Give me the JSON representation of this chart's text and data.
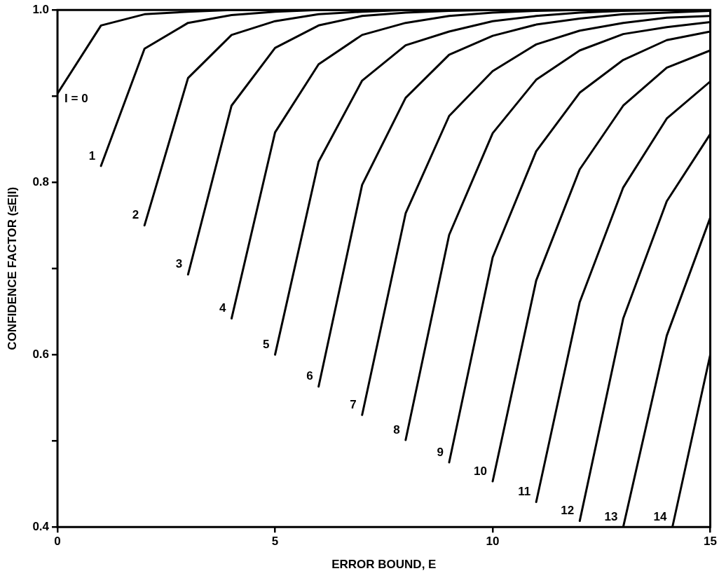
{
  "chart_data": {
    "type": "line",
    "xlabel": "ERROR BOUND, E",
    "ylabel": "CONFIDENCE FACTOR (≤E|I)",
    "xlim": [
      0,
      15
    ],
    "xticks": [
      0,
      5,
      10,
      15
    ],
    "ylim": [
      0.4,
      1.0
    ],
    "yticks": [
      0.4,
      {
        "value": 0.5,
        "label": null
      },
      0.6,
      {
        "value": 0.7,
        "label": null
      },
      0.8,
      {
        "value": 0.9,
        "label": null
      },
      {
        "value": 1.0,
        "label": "1.0"
      }
    ],
    "grid": false,
    "legend": false,
    "marker": "none",
    "line_style": "solid",
    "series": [
      {
        "name": "I = 0",
        "color": "#000000",
        "x": [
          0,
          1,
          2,
          3,
          4,
          5,
          6,
          7,
          8,
          9,
          10,
          11,
          12,
          13,
          14,
          15
        ],
        "values": [
          0.903,
          0.982,
          0.995,
          0.998,
          1.0,
          1.0,
          1.0,
          1.0,
          1.0,
          1.0,
          1.0,
          1.0,
          1.0,
          1.0,
          1.0,
          1.0
        ]
      },
      {
        "name": "1",
        "color": "#000000",
        "x": [
          1,
          2,
          3,
          4,
          5,
          6,
          7,
          8,
          9,
          10,
          11,
          12,
          13,
          14,
          15
        ],
        "values": [
          0.819,
          0.955,
          0.985,
          0.994,
          0.998,
          1.0,
          1.0,
          1.0,
          1.0,
          1.0,
          1.0,
          1.0,
          1.0,
          1.0,
          1.0
        ]
      },
      {
        "name": "2",
        "color": "#000000",
        "x": [
          2,
          3,
          4,
          5,
          6,
          7,
          8,
          9,
          10,
          11,
          12,
          13,
          14,
          15
        ],
        "values": [
          0.75,
          0.921,
          0.971,
          0.987,
          0.995,
          0.998,
          1.0,
          1.0,
          1.0,
          1.0,
          1.0,
          1.0,
          1.0,
          1.0
        ]
      },
      {
        "name": "3",
        "color": "#000000",
        "x": [
          3,
          4,
          5,
          6,
          7,
          8,
          9,
          10,
          11,
          12,
          13,
          14,
          15
        ],
        "values": [
          0.693,
          0.889,
          0.956,
          0.982,
          0.993,
          0.997,
          0.999,
          1.0,
          1.0,
          1.0,
          1.0,
          1.0,
          1.0
        ]
      },
      {
        "name": "4",
        "color": "#000000",
        "x": [
          4,
          5,
          6,
          7,
          8,
          9,
          10,
          11,
          12,
          13,
          14,
          15
        ],
        "values": [
          0.642,
          0.858,
          0.937,
          0.971,
          0.985,
          0.993,
          0.997,
          0.999,
          1.0,
          1.0,
          1.0,
          1.0
        ]
      },
      {
        "name": "5",
        "color": "#000000",
        "x": [
          5,
          6,
          7,
          8,
          9,
          10,
          11,
          12,
          13,
          14,
          15
        ],
        "values": [
          0.6,
          0.824,
          0.918,
          0.959,
          0.975,
          0.987,
          0.993,
          0.997,
          0.999,
          1.0,
          1.0
        ]
      },
      {
        "name": "6",
        "color": "#000000",
        "x": [
          6,
          7,
          8,
          9,
          10,
          11,
          12,
          13,
          14,
          15
        ],
        "values": [
          0.563,
          0.797,
          0.898,
          0.948,
          0.97,
          0.983,
          0.99,
          0.995,
          0.997,
          0.999
        ]
      },
      {
        "name": "7",
        "color": "#000000",
        "x": [
          7,
          8,
          9,
          10,
          11,
          12,
          13,
          14,
          15
        ],
        "values": [
          0.53,
          0.764,
          0.877,
          0.929,
          0.96,
          0.976,
          0.985,
          0.991,
          0.993
        ]
      },
      {
        "name": "8",
        "color": "#000000",
        "x": [
          8,
          9,
          10,
          11,
          12,
          13,
          14,
          15
        ],
        "values": [
          0.501,
          0.739,
          0.857,
          0.919,
          0.953,
          0.972,
          0.98,
          0.986
        ]
      },
      {
        "name": "9",
        "color": "#000000",
        "x": [
          9,
          10,
          11,
          12,
          13,
          14,
          15
        ],
        "values": [
          0.475,
          0.713,
          0.836,
          0.904,
          0.942,
          0.965,
          0.975
        ]
      },
      {
        "name": "10",
        "color": "#000000",
        "x": [
          10,
          11,
          12,
          13,
          14,
          15
        ],
        "values": [
          0.453,
          0.686,
          0.815,
          0.889,
          0.933,
          0.953
        ]
      },
      {
        "name": "11",
        "color": "#000000",
        "x": [
          11,
          12,
          13,
          14,
          15
        ],
        "values": [
          0.429,
          0.661,
          0.794,
          0.874,
          0.917
        ]
      },
      {
        "name": "12",
        "color": "#000000",
        "x": [
          12,
          13,
          14,
          15
        ],
        "values": [
          0.407,
          0.642,
          0.778,
          0.856
        ]
      },
      {
        "name": "13",
        "color": "#000000",
        "x": [
          13,
          14,
          15
        ],
        "values": [
          0.4,
          0.622,
          0.759
        ]
      },
      {
        "name": "14",
        "color": "#000000",
        "x": [
          14.13,
          15
        ],
        "values": [
          0.4,
          0.6
        ]
      }
    ]
  }
}
